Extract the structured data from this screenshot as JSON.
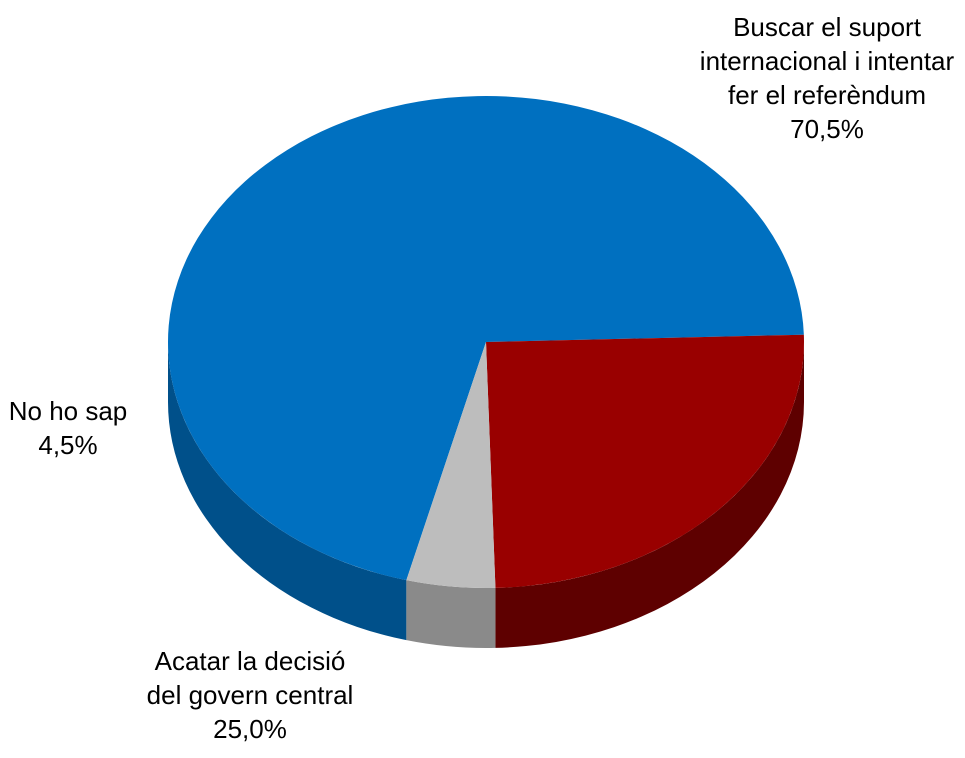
{
  "chart_data": {
    "type": "pie",
    "title": "",
    "slices": [
      {
        "label_lines": [
          "Buscar el suport",
          "internacional i intentar",
          "fer el referèndum"
        ],
        "value_text": "70,5%",
        "value": 70.5,
        "color": "#0070C0",
        "side_color": "#00508A"
      },
      {
        "label_lines": [
          "Acatar la decisió",
          "del govern central"
        ],
        "value_text": "25,0%",
        "value": 25.0,
        "color": "#990000",
        "side_color": "#5E0000"
      },
      {
        "label_lines": [
          "No ho sap"
        ],
        "value_text": "4,5%",
        "value": 4.5,
        "color": "#BDBDBD",
        "side_color": "#8A8A8A"
      }
    ]
  }
}
